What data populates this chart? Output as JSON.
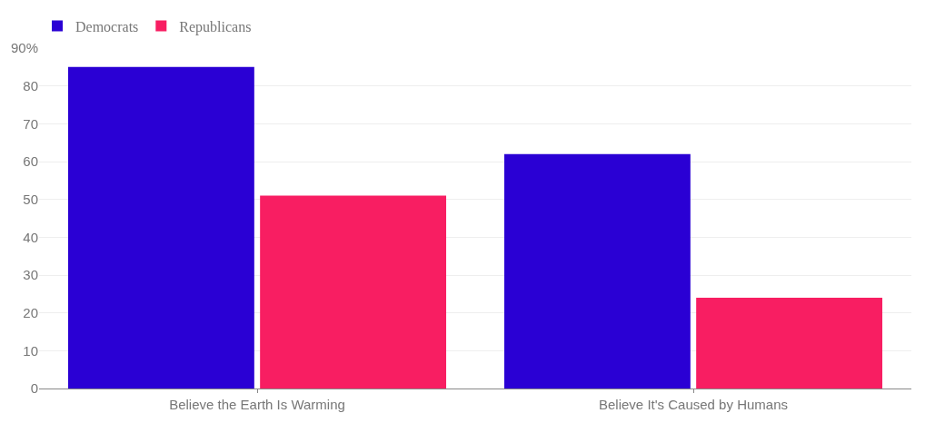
{
  "chart_data": {
    "type": "bar",
    "categories": [
      "Believe the Earth Is Warming",
      "Believe It's Caused by Humans"
    ],
    "series": [
      {
        "name": "Democrats",
        "color": "#2a00d4",
        "values": [
          85,
          62
        ]
      },
      {
        "name": "Republicans",
        "color": "#f81e62",
        "values": [
          51,
          24
        ]
      }
    ],
    "ylim": [
      0,
      90
    ],
    "yticks": [
      0,
      10,
      20,
      30,
      40,
      50,
      60,
      70,
      80,
      {
        "value": 90,
        "label": "90%"
      }
    ],
    "grid": "y",
    "legend": "top left"
  }
}
